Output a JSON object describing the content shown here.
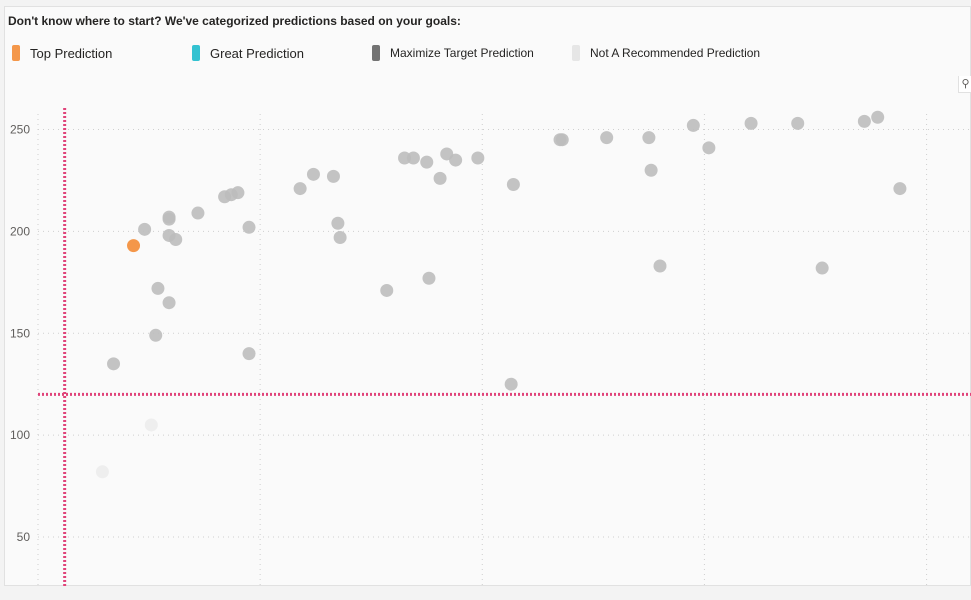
{
  "heading": "Don't know where to start? We've categorized predictions based on your goals:",
  "legend": [
    {
      "label": "Top Prediction",
      "color": "#f4974a"
    },
    {
      "label": "Great Prediction",
      "color": "#33c2d1"
    },
    {
      "label": "Maximize Target Prediction",
      "color": "#737373"
    },
    {
      "label": "Not A Recommended Prediction",
      "color": "#e6e6e6"
    }
  ],
  "icons": {
    "pin": "pin-icon"
  },
  "chart_data": {
    "type": "scatter",
    "title": "",
    "xlabel": "",
    "ylabel": "",
    "xlim": [
      0,
      42
    ],
    "ylim": [
      28,
      260
    ],
    "yticks": [
      50,
      100,
      150,
      200,
      250
    ],
    "grid": true,
    "legend_position": "top-left",
    "reference_lines": {
      "x": 1.2,
      "y": 120,
      "color": "#e0447a"
    },
    "series": [
      {
        "name": "Top Prediction",
        "color": "#f4974a",
        "points": [
          [
            4.3,
            193
          ]
        ]
      },
      {
        "name": "Maximize Target Prediction",
        "color": "#bdbdbd",
        "points": [
          [
            3.4,
            135
          ],
          [
            4.8,
            201
          ],
          [
            5.4,
            172
          ],
          [
            5.3,
            149
          ],
          [
            5.9,
            165
          ],
          [
            5.9,
            207
          ],
          [
            5.9,
            206
          ],
          [
            5.9,
            198
          ],
          [
            6.2,
            196
          ],
          [
            7.2,
            209
          ],
          [
            8.4,
            217
          ],
          [
            8.7,
            218
          ],
          [
            9.0,
            219
          ],
          [
            9.5,
            202
          ],
          [
            9.5,
            140
          ],
          [
            11.8,
            221
          ],
          [
            12.4,
            228
          ],
          [
            13.3,
            227
          ],
          [
            13.5,
            204
          ],
          [
            13.6,
            197
          ],
          [
            15.7,
            171
          ],
          [
            16.5,
            236
          ],
          [
            16.9,
            236
          ],
          [
            17.5,
            234
          ],
          [
            17.6,
            177
          ],
          [
            18.1,
            226
          ],
          [
            18.4,
            238
          ],
          [
            18.8,
            235
          ],
          [
            19.8,
            236
          ],
          [
            21.3,
            125
          ],
          [
            21.4,
            223
          ],
          [
            23.5,
            245
          ],
          [
            23.6,
            245
          ],
          [
            25.6,
            246
          ],
          [
            27.5,
            246
          ],
          [
            27.6,
            230
          ],
          [
            28.0,
            183
          ],
          [
            29.5,
            252
          ],
          [
            30.2,
            241
          ],
          [
            32.1,
            253
          ],
          [
            34.2,
            253
          ],
          [
            35.3,
            182
          ],
          [
            37.2,
            254
          ],
          [
            37.8,
            256
          ],
          [
            38.8,
            221
          ]
        ]
      },
      {
        "name": "Not A Recommended Prediction",
        "color": "#ececec",
        "points": [
          [
            2.9,
            82
          ],
          [
            5.1,
            105
          ]
        ]
      }
    ]
  }
}
